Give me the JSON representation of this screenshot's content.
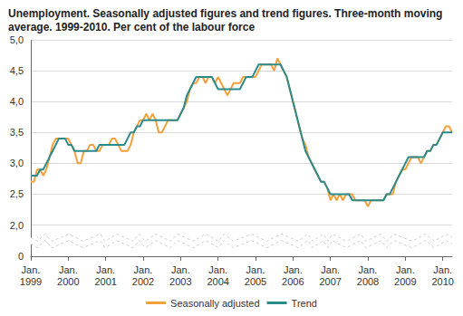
{
  "chart_data": {
    "type": "line",
    "title": "Unemployment. Seasonally adjusted figures and trend figures. Three-month moving average. 1999-2010. Per cent of the labour force",
    "categories": [
      "Jan.\n1999",
      null,
      null,
      null,
      null,
      null,
      null,
      null,
      null,
      null,
      null,
      null,
      "Jan.\n2000",
      null,
      null,
      null,
      null,
      null,
      null,
      null,
      null,
      null,
      null,
      null,
      "Jan.\n2001",
      null,
      null,
      null,
      null,
      null,
      null,
      null,
      null,
      null,
      null,
      null,
      "Jan.\n2002",
      null,
      null,
      null,
      null,
      null,
      null,
      null,
      null,
      null,
      null,
      null,
      "Jan.\n2003",
      null,
      null,
      null,
      null,
      null,
      null,
      null,
      null,
      null,
      null,
      null,
      "Jan.\n2004",
      null,
      null,
      null,
      null,
      null,
      null,
      null,
      null,
      null,
      null,
      null,
      "Jan.\n2005",
      null,
      null,
      null,
      null,
      null,
      null,
      null,
      null,
      null,
      null,
      null,
      "Jan.\n2006",
      null,
      null,
      null,
      null,
      null,
      null,
      null,
      null,
      null,
      null,
      null,
      "Jan.\n2007",
      null,
      null,
      null,
      null,
      null,
      null,
      null,
      null,
      null,
      null,
      null,
      "Jan.\n2008",
      null,
      null,
      null,
      null,
      null,
      null,
      null,
      null,
      null,
      null,
      null,
      "Jan.\n2009",
      null,
      null,
      null,
      null,
      null,
      null,
      null,
      null,
      null,
      null,
      null,
      "Jan.\n2010",
      null,
      null,
      null
    ],
    "series": [
      {
        "name": "Seasonally adjusted",
        "color": "#f5a03a",
        "values": [
          2.7,
          2.7,
          2.9,
          2.9,
          2.8,
          2.9,
          3.1,
          3.3,
          3.4,
          3.4,
          3.4,
          3.4,
          3.4,
          3.3,
          3.2,
          3.0,
          3.0,
          3.2,
          3.2,
          3.3,
          3.3,
          3.2,
          3.2,
          3.3,
          3.3,
          3.3,
          3.4,
          3.4,
          3.3,
          3.2,
          3.2,
          3.2,
          3.3,
          3.5,
          3.6,
          3.7,
          3.7,
          3.8,
          3.7,
          3.8,
          3.7,
          3.5,
          3.5,
          3.6,
          3.7,
          3.7,
          3.7,
          3.7,
          3.8,
          3.9,
          4.0,
          4.2,
          4.3,
          4.3,
          4.4,
          4.4,
          4.3,
          4.4,
          4.4,
          4.3,
          4.4,
          4.3,
          4.2,
          4.1,
          4.2,
          4.3,
          4.3,
          4.3,
          4.4,
          4.4,
          4.4,
          4.4,
          4.4,
          4.5,
          4.6,
          4.6,
          4.6,
          4.6,
          4.5,
          4.7,
          4.6,
          4.5,
          4.4,
          4.2,
          4.0,
          3.8,
          3.6,
          3.4,
          3.3,
          3.1,
          3.0,
          2.9,
          2.8,
          2.7,
          2.7,
          2.6,
          2.4,
          2.5,
          2.4,
          2.5,
          2.4,
          2.5,
          2.5,
          2.5,
          2.4,
          2.4,
          2.4,
          2.4,
          2.3,
          2.4,
          2.4,
          2.4,
          2.4,
          2.4,
          2.5,
          2.5,
          2.5,
          2.7,
          2.8,
          2.9,
          2.9,
          3.0,
          3.1,
          3.1,
          3.1,
          3.0,
          3.1,
          3.2,
          3.2,
          3.3,
          3.3,
          3.4,
          3.5,
          3.6,
          3.6,
          3.5
        ]
      },
      {
        "name": "Trend",
        "color": "#2a8a8c",
        "values": [
          2.8,
          2.8,
          2.8,
          2.9,
          2.9,
          3.0,
          3.1,
          3.2,
          3.3,
          3.4,
          3.4,
          3.4,
          3.3,
          3.3,
          3.2,
          3.2,
          3.2,
          3.2,
          3.2,
          3.2,
          3.2,
          3.2,
          3.3,
          3.3,
          3.3,
          3.3,
          3.3,
          3.3,
          3.3,
          3.3,
          3.3,
          3.4,
          3.5,
          3.5,
          3.6,
          3.6,
          3.7,
          3.7,
          3.7,
          3.7,
          3.7,
          3.7,
          3.7,
          3.7,
          3.7,
          3.7,
          3.7,
          3.7,
          3.8,
          3.9,
          4.1,
          4.2,
          4.3,
          4.4,
          4.4,
          4.4,
          4.4,
          4.4,
          4.4,
          4.3,
          4.2,
          4.2,
          4.2,
          4.2,
          4.2,
          4.2,
          4.2,
          4.2,
          4.3,
          4.4,
          4.4,
          4.4,
          4.5,
          4.6,
          4.6,
          4.6,
          4.6,
          4.6,
          4.6,
          4.6,
          4.6,
          4.5,
          4.4,
          4.2,
          4.0,
          3.8,
          3.6,
          3.4,
          3.2,
          3.1,
          3.0,
          2.9,
          2.8,
          2.7,
          2.7,
          2.6,
          2.5,
          2.5,
          2.5,
          2.5,
          2.5,
          2.5,
          2.5,
          2.4,
          2.4,
          2.4,
          2.4,
          2.4,
          2.4,
          2.4,
          2.4,
          2.4,
          2.4,
          2.4,
          2.5,
          2.5,
          2.6,
          2.7,
          2.8,
          2.9,
          3.0,
          3.1,
          3.1,
          3.1,
          3.1,
          3.1,
          3.1,
          3.2,
          3.2,
          3.3,
          3.3,
          3.4,
          3.5,
          3.5,
          3.5,
          3.5
        ]
      }
    ],
    "ylim": [
      0,
      5
    ],
    "yticks": [
      0,
      {
        "value": 2,
        "label": "2,0"
      },
      {
        "value": 2.5,
        "label": "2,5"
      },
      {
        "value": 3,
        "label": "3,0"
      },
      {
        "value": 3.5,
        "label": "3,5"
      },
      {
        "value": 4,
        "label": "4,0"
      },
      {
        "value": 4.5,
        "label": "4,5"
      },
      {
        "value": 5,
        "label": "5,0"
      }
    ],
    "grid": true,
    "legend": "bottom"
  }
}
